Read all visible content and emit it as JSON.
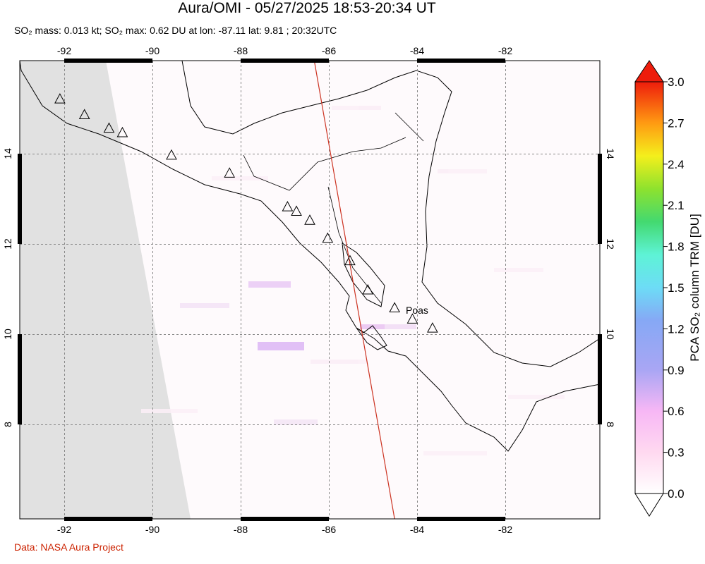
{
  "header": {
    "title": "Aura/OMI - 05/27/2025 18:53-20:34 UT",
    "subtitle": "SO₂ mass: 0.013 kt; SO₂ max: 0.62 DU at lon: -87.11 lat: 9.81 ; 20:32UTC"
  },
  "footer": {
    "credit": "Data: NASA Aura Project"
  },
  "map": {
    "lon_range": [
      -93,
      -80
    ],
    "lat_range": [
      5.75,
      15.95
    ],
    "lon_ticks": [
      {
        "value": -92,
        "label": "-92"
      },
      {
        "value": -90,
        "label": "-90"
      },
      {
        "value": -88,
        "label": "-88"
      },
      {
        "value": -86,
        "label": "-86"
      },
      {
        "value": -84,
        "label": "-84"
      },
      {
        "value": -82,
        "label": "-82"
      }
    ],
    "lat_ticks": [
      {
        "value": 14,
        "label": "14"
      },
      {
        "value": 12,
        "label": "12"
      },
      {
        "value": 10,
        "label": "10"
      },
      {
        "value": 8,
        "label": "8"
      }
    ],
    "volcano_label": "Poas",
    "volcanoes": [
      [
        -92.1,
        15.1
      ],
      [
        -91.55,
        14.75
      ],
      [
        -91.0,
        14.45
      ],
      [
        -90.7,
        14.35
      ],
      [
        -89.6,
        13.85
      ],
      [
        -88.3,
        13.45
      ],
      [
        -87.0,
        12.7
      ],
      [
        -86.8,
        12.6
      ],
      [
        -86.5,
        12.4
      ],
      [
        -86.1,
        12.0
      ],
      [
        -85.6,
        11.5
      ],
      [
        -85.2,
        10.85
      ],
      [
        -84.6,
        10.45
      ],
      [
        -84.2,
        10.2
      ],
      [
        -83.75,
        10.0
      ]
    ],
    "ground_track": [
      [
        -86.4,
        15.95
      ],
      [
        -84.6,
        5.75
      ]
    ],
    "track_color": "#cc3322"
  },
  "colorbar": {
    "title": "PCA SO₂ column TRM [DU]",
    "min": 0.0,
    "max": 3.0,
    "ticks": [
      "3.0",
      "2.7",
      "2.4",
      "2.1",
      "1.8",
      "1.5",
      "1.2",
      "0.9",
      "0.6",
      "0.3",
      "0.0"
    ]
  }
}
